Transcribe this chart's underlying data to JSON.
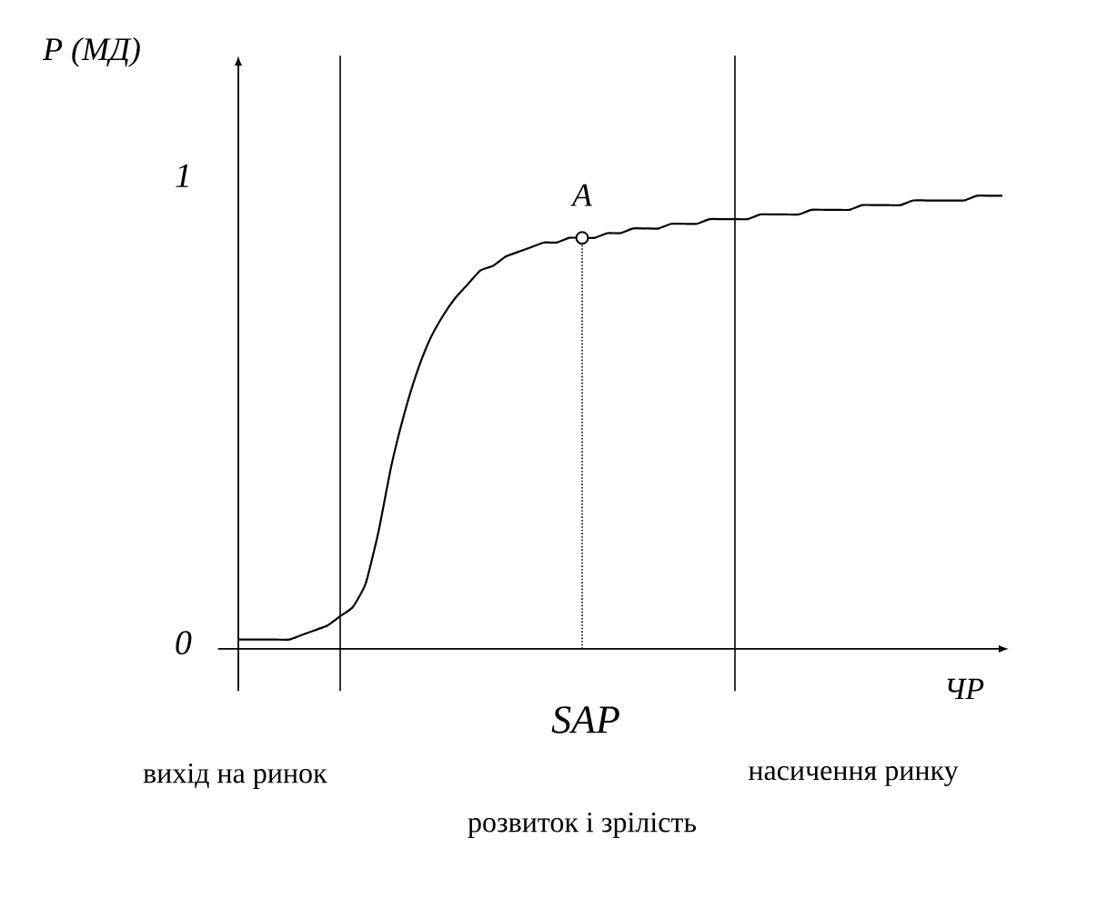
{
  "chart_data": {
    "type": "line",
    "xlabel": "ЧР",
    "ylabel": "P (МД)",
    "tick_labels": "y",
    "categories": [
      null,
      null,
      null,
      null,
      null,
      null,
      null,
      null,
      null,
      null,
      null,
      null,
      null,
      null,
      null,
      null,
      null,
      null,
      null,
      null,
      null,
      null,
      null,
      null,
      null,
      null,
      null,
      null,
      null,
      null,
      null,
      null,
      null,
      null,
      null,
      null,
      null,
      null,
      null,
      null,
      null,
      null,
      null,
      null,
      null,
      null,
      null,
      null,
      null,
      null,
      null,
      null,
      null,
      null,
      null,
      null,
      null,
      null,
      null,
      null,
      null
    ],
    "series": [
      {
        "color": "#000000",
        "values": [
          0.02,
          0.02,
          0.02,
          0.02,
          0.02,
          0.03,
          0.04,
          0.05,
          0.07,
          0.09,
          0.14,
          0.25,
          0.39,
          0.5,
          0.59,
          0.66,
          0.71,
          0.75,
          0.78,
          0.81,
          0.82,
          0.84,
          0.85,
          0.86,
          0.87,
          0.87,
          0.88,
          0.88,
          0.88,
          0.89,
          0.89,
          0.9,
          0.9,
          0.9,
          0.91,
          0.91,
          0.91,
          0.92,
          0.92,
          0.92,
          0.92,
          0.93,
          0.93,
          0.93,
          0.93,
          0.94,
          0.94,
          0.94,
          0.94,
          0.95,
          0.95,
          0.95,
          0.95,
          0.96,
          0.96,
          0.96,
          0.96,
          0.96,
          0.97,
          0.97,
          0.97
        ]
      },
      {
        "type": "scatter",
        "name": "A",
        "color": "#000000",
        "marker": "circle",
        "values": [
          null,
          null,
          null,
          null,
          null,
          null,
          null,
          null,
          null,
          null,
          null,
          null,
          null,
          null,
          null,
          null,
          null,
          null,
          null,
          null,
          null,
          null,
          null,
          null,
          null,
          null,
          null,
          0.88,
          null,
          null,
          null,
          null,
          null,
          null,
          null,
          null,
          null,
          null,
          null,
          null,
          null,
          null,
          null,
          null,
          null,
          null,
          null,
          null,
          null,
          null,
          null,
          null,
          null,
          null,
          null,
          null,
          null,
          null,
          null,
          null,
          null
        ]
      }
    ],
    "ylim": [
      -0.09,
      1.27
    ],
    "yticks": [
      0,
      1
    ],
    "annotations": [
      "SAP",
      "вихід на ринок",
      "розвиток і  зрілість",
      "насичення ринку"
    ]
  }
}
